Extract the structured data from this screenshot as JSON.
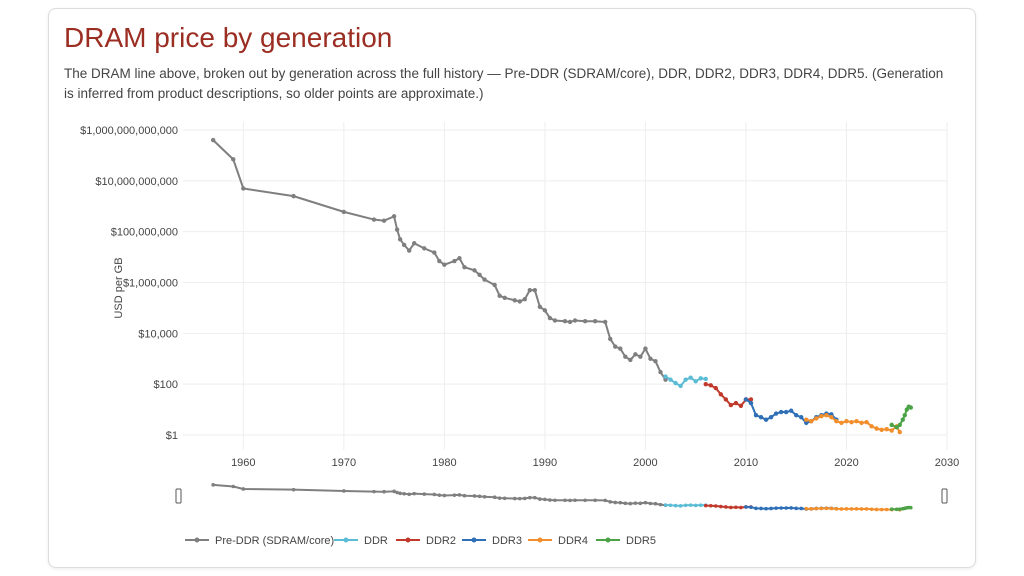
{
  "title": "DRAM price by generation",
  "subtitle": "The DRAM line above, broken out by generation across the full history — Pre-DDR (SDRAM/core), DDR, DDR2, DDR3, DDR4, DDR5. (Generation is inferred from product descriptions, so older points are approximate.)",
  "chart_data": {
    "type": "line",
    "ylabel": "USD per GB",
    "yscale": "log",
    "xlim": [
      1954,
      2030
    ],
    "ylim": [
      0.25,
      1000000000000.0
    ],
    "grid": true,
    "legend_position": "bottom",
    "x_ticks": [
      1960,
      1970,
      1980,
      1990,
      2000,
      2010,
      2020,
      2030
    ],
    "y_ticks": [
      {
        "value": 1000000000000.0,
        "label": "$1,000,000,000,000"
      },
      {
        "value": 10000000000.0,
        "label": "$10,000,000,000"
      },
      {
        "value": 100000000.0,
        "label": "$100,000,000"
      },
      {
        "value": 1000000.0,
        "label": "$1,000,000"
      },
      {
        "value": 10000.0,
        "label": "$10,000"
      },
      {
        "value": 100,
        "label": "$100"
      },
      {
        "value": 1,
        "label": "$1"
      }
    ],
    "series": [
      {
        "name": "Pre-DDR (SDRAM/core)",
        "color": "#7f7f7f",
        "points": [
          [
            1957,
            400000000000.0
          ],
          [
            1959,
            70000000000.0
          ],
          [
            1960,
            5000000000.0
          ],
          [
            1965,
            2500000000.0
          ],
          [
            1970,
            600000000.0
          ],
          [
            1973,
            300000000.0
          ],
          [
            1974,
            270000000.0
          ],
          [
            1975,
            400000000.0
          ],
          [
            1975.3,
            120000000.0
          ],
          [
            1975.6,
            50000000.0
          ],
          [
            1976,
            30000000.0
          ],
          [
            1976.5,
            18000000.0
          ],
          [
            1977,
            35000000.0
          ],
          [
            1978,
            22000000.0
          ],
          [
            1979,
            15000000.0
          ],
          [
            1979.5,
            7000000.0
          ],
          [
            1980,
            5000000.0
          ],
          [
            1981,
            7000000.0
          ],
          [
            1981.5,
            9000000.0
          ],
          [
            1982,
            4000000.0
          ],
          [
            1983,
            3000000.0
          ],
          [
            1983.5,
            2000000.0
          ],
          [
            1984,
            1300000.0
          ],
          [
            1985,
            800000.0
          ],
          [
            1985.5,
            300000.0
          ],
          [
            1986,
            250000.0
          ],
          [
            1987,
            200000.0
          ],
          [
            1987.5,
            180000.0
          ],
          [
            1988,
            220000.0
          ],
          [
            1988.5,
            500000.0
          ],
          [
            1989,
            500000.0
          ],
          [
            1989.5,
            110000.0
          ],
          [
            1990,
            80000.0
          ],
          [
            1990.5,
            40000.0
          ],
          [
            1991,
            32000.0
          ],
          [
            1992,
            30000.0
          ],
          [
            1992.5,
            28000.0
          ],
          [
            1993,
            32000.0
          ],
          [
            1994,
            30000.0
          ],
          [
            1995,
            30000.0
          ],
          [
            1996,
            28000.0
          ],
          [
            1996.5,
            6000.0
          ],
          [
            1997,
            3000.0
          ],
          [
            1997.5,
            2500.0
          ],
          [
            1998,
            1200.0
          ],
          [
            1998.5,
            900
          ],
          [
            1999,
            1500.0
          ],
          [
            1999.5,
            1200.0
          ],
          [
            2000,
            2500.0
          ],
          [
            2000.5,
            1000.0
          ],
          [
            2001,
            800
          ],
          [
            2001.5,
            300
          ],
          [
            2002,
            150
          ]
        ]
      },
      {
        "name": "DDR",
        "color": "#5bbcd6",
        "points": [
          [
            2002,
            200
          ],
          [
            2002.5,
            150
          ],
          [
            2003,
            110
          ],
          [
            2003.5,
            85
          ],
          [
            2004,
            150
          ],
          [
            2004.5,
            180
          ],
          [
            2005,
            130
          ],
          [
            2005.5,
            170
          ],
          [
            2006,
            160
          ]
        ]
      },
      {
        "name": "DDR2",
        "color": "#c0392b",
        "points": [
          [
            2006,
            100
          ],
          [
            2006.5,
            90
          ],
          [
            2007,
            70
          ],
          [
            2007.5,
            40
          ],
          [
            2008,
            25
          ],
          [
            2008.5,
            15
          ],
          [
            2009,
            18
          ],
          [
            2009.5,
            14
          ],
          [
            2010,
            25
          ],
          [
            2010.5,
            25
          ]
        ]
      },
      {
        "name": "DDR3",
        "color": "#2e6fb7",
        "points": [
          [
            2010,
            25
          ],
          [
            2010.5,
            18
          ],
          [
            2011,
            6
          ],
          [
            2011.5,
            5
          ],
          [
            2012,
            4
          ],
          [
            2012.5,
            5
          ],
          [
            2013,
            7
          ],
          [
            2013.5,
            8
          ],
          [
            2014,
            8
          ],
          [
            2014.5,
            9
          ],
          [
            2015,
            6
          ],
          [
            2015.5,
            5
          ],
          [
            2016,
            3
          ],
          [
            2016.5,
            3.5
          ],
          [
            2017,
            5
          ],
          [
            2017.5,
            6
          ],
          [
            2018,
            7
          ],
          [
            2018.5,
            6.5
          ],
          [
            2019,
            4
          ]
        ]
      },
      {
        "name": "DDR4",
        "color": "#f28e2b",
        "points": [
          [
            2016,
            4
          ],
          [
            2016.5,
            3.5
          ],
          [
            2017,
            4.5
          ],
          [
            2017.5,
            5.5
          ],
          [
            2018,
            6
          ],
          [
            2018.5,
            5
          ],
          [
            2019,
            3.5
          ],
          [
            2019.5,
            3
          ],
          [
            2020,
            3.5
          ],
          [
            2020.5,
            3.2
          ],
          [
            2021,
            3.5
          ],
          [
            2021.5,
            3
          ],
          [
            2022,
            3.2
          ],
          [
            2022.5,
            2.2
          ],
          [
            2023,
            1.8
          ],
          [
            2023.5,
            1.6
          ],
          [
            2024,
            1.7
          ],
          [
            2024.5,
            1.5
          ],
          [
            2025,
            2.2
          ],
          [
            2025.3,
            1.3
          ]
        ]
      },
      {
        "name": "DDR5",
        "color": "#4ca347",
        "points": [
          [
            2024.5,
            2.5
          ],
          [
            2025,
            2
          ],
          [
            2025.3,
            2.5
          ],
          [
            2025.6,
            4
          ],
          [
            2025.8,
            6
          ],
          [
            2026,
            10
          ],
          [
            2026.2,
            13
          ],
          [
            2026.4,
            12
          ]
        ]
      }
    ],
    "x_range_min": 1954,
    "x_range_max": 2030
  }
}
